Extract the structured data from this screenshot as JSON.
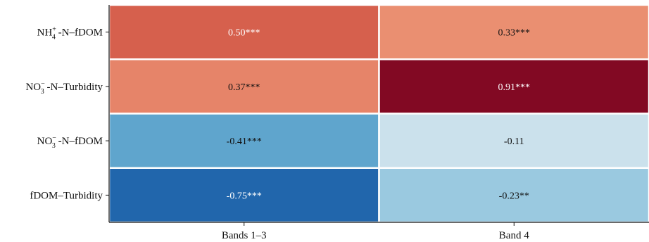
{
  "chart_data": {
    "type": "heatmap",
    "title": "",
    "xlabel": "",
    "ylabel": "",
    "columns": [
      "Bands 1–3",
      "Band 4"
    ],
    "rows": [
      {
        "base": "NH",
        "sub": "4",
        "sup": "+",
        "rest": " -N–fDOM"
      },
      {
        "base": "NO",
        "sub": "3",
        "sup": "−",
        "rest": " -N–Turbidity"
      },
      {
        "base": "NO",
        "sub": "3",
        "sup": "−",
        "rest": " -N–fDOM"
      },
      {
        "base": "fDOM–Turbidity",
        "sub": "",
        "sup": "",
        "rest": ""
      }
    ],
    "values": [
      [
        0.5,
        0.33
      ],
      [
        0.37,
        0.91
      ],
      [
        -0.41,
        -0.11
      ],
      [
        -0.75,
        -0.23
      ]
    ],
    "labels": [
      [
        "0.50***",
        "0.33***"
      ],
      [
        "0.37***",
        "0.91***"
      ],
      [
        "-0.41***",
        "-0.11"
      ],
      [
        "-0.75***",
        "-0.23**"
      ]
    ],
    "colormap": "RdBu_r",
    "color_range": [
      -1,
      1
    ],
    "grid": false,
    "legend": "none"
  }
}
